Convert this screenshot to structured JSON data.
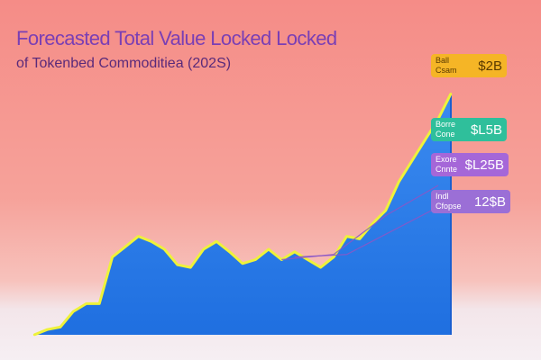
{
  "title": "Forecasted Total Value Locked Locked",
  "subtitle": "of Tokenbed Commoditiea (202S)",
  "colors": {
    "area_top": "#3b8bf0",
    "area_bottom": "#1f6fe0",
    "outline": "#eef23a",
    "badge_1": "#f5b526",
    "badge_2": "#2fbf9b",
    "badge_3": "#a567d8",
    "badge_4": "#9b6fd6",
    "connector": "#8a56c8"
  },
  "chart_data": {
    "type": "area",
    "title": "Forecasted Total Value Locked Locked",
    "subtitle": "of Tokenbed Commoditiea (202S)",
    "xlabel": "",
    "ylabel": "",
    "ylim": [
      0,
      2.0
    ],
    "grid": false,
    "values": [
      0.0,
      0.04,
      0.06,
      0.18,
      0.24,
      0.24,
      0.6,
      0.68,
      0.76,
      0.72,
      0.66,
      0.54,
      0.52,
      0.66,
      0.72,
      0.64,
      0.55,
      0.58,
      0.66,
      0.58,
      0.64,
      0.58,
      0.52,
      0.6,
      0.76,
      0.74,
      0.86,
      0.96,
      1.18,
      1.34,
      1.5,
      1.66,
      1.86
    ],
    "value_labels": [
      {
        "label": "Ball Csam",
        "value": "$2B",
        "color": "#f5b526",
        "text_color": "#5a3a00"
      },
      {
        "label": "Borre Cone",
        "value": "$L5B",
        "color": "#2fbf9b",
        "text_color": "#ffffff"
      },
      {
        "label": "Exore Cnnte",
        "value": "$L25B",
        "color": "#a567d8",
        "text_color": "#ffffff"
      },
      {
        "label": "Indl Cfopse",
        "value": "12$B",
        "color": "#9b6fd6",
        "text_color": "#ffffff"
      }
    ]
  }
}
